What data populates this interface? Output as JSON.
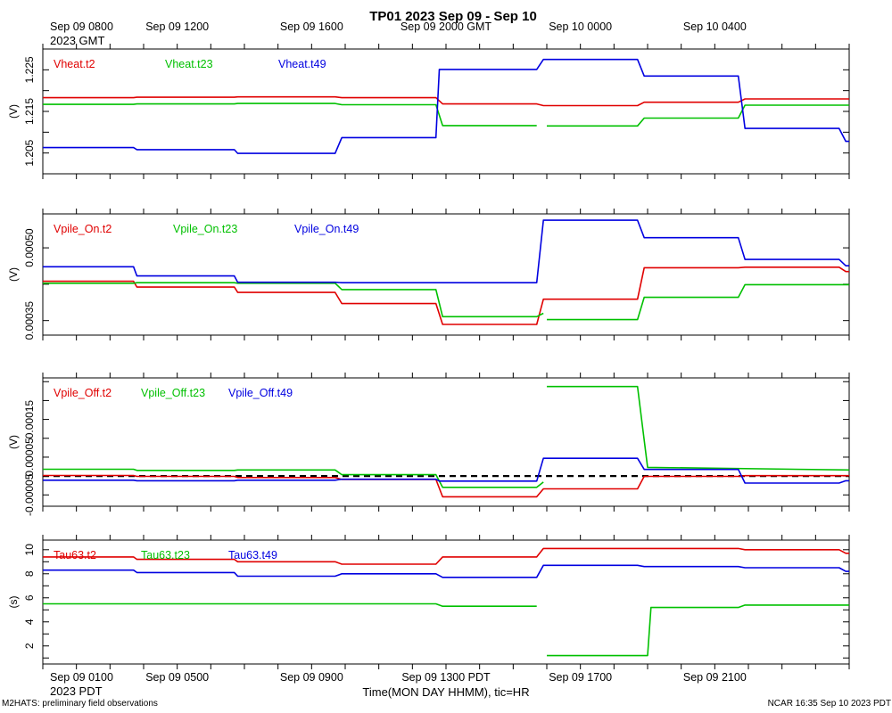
{
  "title": "TP01 2023 Sep 09 - Sep 10",
  "footer_left": "M2HATS: preliminary field observations",
  "footer_right": "NCAR 16:35 Sep 10 2023 PDT",
  "xlabel": "Time(MON DAY HHMM), tic=HR",
  "colors": {
    "t2": "#e00000",
    "t23": "#00c000",
    "t49": "#0000e0",
    "axis": "#000000"
  },
  "top_axis": {
    "ticks": [
      {
        "h": 0.3,
        "label": "Sep 09 0800"
      },
      {
        "h": 4,
        "label": "Sep 09 1200"
      },
      {
        "h": 8,
        "label": "Sep 09 1600"
      },
      {
        "h": 12,
        "label": "Sep 09 2000 GMT"
      },
      {
        "h": 16,
        "label": "Sep 10 0000"
      },
      {
        "h": 20,
        "label": "Sep 10 0400"
      }
    ],
    "sublabel": "2023 GMT"
  },
  "bottom_axis": {
    "ticks": [
      {
        "h": 0.3,
        "label": "Sep 09 0100"
      },
      {
        "h": 4,
        "label": "Sep 09 0500"
      },
      {
        "h": 8,
        "label": "Sep 09 0900"
      },
      {
        "h": 12,
        "label": "Sep 09 1300 PDT"
      },
      {
        "h": 16,
        "label": "Sep 09 1700"
      },
      {
        "h": 20,
        "label": "Sep 09 2100"
      }
    ],
    "sublabel": "2023 PDT"
  },
  "chart_data": [
    {
      "type": "line",
      "name": "vheat",
      "ylabel": "(V)",
      "xlim": [
        0,
        24
      ],
      "ylim": [
        1.2,
        1.23
      ],
      "yticks": [
        1.205,
        1.215,
        1.225
      ],
      "ytick_labels": [
        "1.205",
        "1.215",
        "1.225"
      ],
      "series": [
        {
          "name": "Vheat.t2",
          "color_key": "t2",
          "points": [
            [
              0,
              1.2183
            ],
            [
              2.7,
              1.2183
            ],
            [
              2.8,
              1.2184
            ],
            [
              5.7,
              1.2184
            ],
            [
              5.8,
              1.2185
            ],
            [
              8.7,
              1.2185
            ],
            [
              8.9,
              1.2183
            ],
            [
              11.7,
              1.2183
            ],
            [
              11.9,
              1.2168
            ],
            [
              14.7,
              1.2168
            ],
            [
              14.9,
              1.2164
            ],
            [
              17.7,
              1.2164
            ],
            [
              17.9,
              1.2172
            ],
            [
              20.7,
              1.2172
            ],
            [
              20.9,
              1.218
            ],
            [
              24,
              1.218
            ]
          ]
        },
        {
          "name": "Vheat.t23",
          "color_key": "t23",
          "points": [
            [
              0,
              1.2167
            ],
            [
              2.7,
              1.2167
            ],
            [
              2.8,
              1.2168
            ],
            [
              5.7,
              1.2168
            ],
            [
              5.8,
              1.2169
            ],
            [
              8.7,
              1.2169
            ],
            [
              8.9,
              1.2166
            ],
            [
              11.7,
              1.2166
            ],
            [
              11.9,
              1.2116
            ],
            [
              14.7,
              1.2116
            ],
            null,
            [
              15,
              1.2115
            ],
            [
              17.7,
              1.2115
            ],
            [
              17.9,
              1.2134
            ],
            [
              20.7,
              1.2134
            ],
            [
              20.9,
              1.2165
            ],
            [
              24,
              1.2165
            ]
          ]
        },
        {
          "name": "Vheat.t49",
          "color_key": "t49",
          "points": [
            [
              0,
              1.2063
            ],
            [
              2.7,
              1.2063
            ],
            [
              2.8,
              1.2058
            ],
            [
              5.7,
              1.2058
            ],
            [
              5.8,
              1.2049
            ],
            [
              8.7,
              1.2049
            ],
            [
              8.9,
              1.2087
            ],
            [
              11.7,
              1.2087
            ],
            [
              11.8,
              1.2251
            ],
            [
              14.7,
              1.2251
            ],
            [
              14.9,
              1.2275
            ],
            [
              17.7,
              1.2275
            ],
            [
              17.9,
              1.2235
            ],
            [
              20.7,
              1.2235
            ],
            [
              20.9,
              1.2109
            ],
            [
              23.7,
              1.2109
            ],
            [
              23.9,
              1.2078
            ],
            [
              24,
              1.2078
            ]
          ]
        }
      ]
    },
    {
      "type": "line",
      "name": "vpile_on",
      "ylabel": "(V)",
      "xlim": [
        0,
        24
      ],
      "ylim": [
        0.00032,
        0.00057
      ],
      "yticks": [
        0.00035,
        0.0005
      ],
      "ytick_labels": [
        "0.00035",
        "0.00050"
      ],
      "series": [
        {
          "name": "Vpile_On.t2",
          "color_key": "t2",
          "points": [
            [
              0,
              0.000431
            ],
            [
              2.7,
              0.000431
            ],
            [
              2.8,
              0.000419
            ],
            [
              5.7,
              0.000419
            ],
            [
              5.8,
              0.000408
            ],
            [
              8.7,
              0.000408
            ],
            [
              8.9,
              0.000385
            ],
            [
              11.7,
              0.000385
            ],
            [
              11.9,
              0.000342
            ],
            [
              14.7,
              0.000342
            ],
            [
              14.9,
              0.000394
            ],
            [
              17.7,
              0.000394
            ],
            [
              17.9,
              0.000459
            ],
            [
              20.7,
              0.000459
            ],
            [
              20.9,
              0.00046
            ],
            [
              23.7,
              0.00046
            ],
            [
              23.9,
              0.000451
            ],
            [
              24,
              0.000451
            ]
          ]
        },
        {
          "name": "Vpile_On.t23",
          "color_key": "t23",
          "points": [
            [
              0,
              0.000427
            ],
            [
              2.7,
              0.000427
            ],
            [
              2.8,
              0.000428
            ],
            [
              5.7,
              0.000428
            ],
            [
              5.8,
              0.000427
            ],
            [
              8.7,
              0.000427
            ],
            [
              8.9,
              0.000414
            ],
            [
              11.7,
              0.000414
            ],
            [
              11.9,
              0.000358
            ],
            [
              14.7,
              0.000358
            ],
            [
              14.9,
              0.000365
            ],
            null,
            [
              15,
              0.000352
            ],
            [
              17.7,
              0.000352
            ],
            [
              17.9,
              0.000398
            ],
            [
              20.7,
              0.000398
            ],
            [
              20.9,
              0.000424
            ],
            [
              24,
              0.000424
            ]
          ]
        },
        {
          "name": "Vpile_On.t49",
          "color_key": "t49",
          "points": [
            [
              0,
              0.000461
            ],
            [
              2.7,
              0.000461
            ],
            [
              2.8,
              0.000442
            ],
            [
              5.7,
              0.000442
            ],
            [
              5.8,
              0.000429
            ],
            [
              8.7,
              0.000429
            ],
            [
              8.9,
              0.000428
            ],
            [
              14.7,
              0.000428
            ],
            [
              14.9,
              0.000557
            ],
            [
              17.7,
              0.000557
            ],
            [
              17.9,
              0.000521
            ],
            [
              20.7,
              0.000521
            ],
            [
              20.9,
              0.000476
            ],
            [
              23.7,
              0.000476
            ],
            [
              23.9,
              0.000463
            ],
            [
              24,
              0.000463
            ]
          ]
        }
      ]
    },
    {
      "type": "line",
      "name": "vpile_off",
      "ylabel": "(V)",
      "xlim": [
        0,
        24
      ],
      "ylim": [
        -8e-05,
        0.00026
      ],
      "yticks": [
        -5e-05,
        5e-05,
        0.00015
      ],
      "ytick_labels": [
        "-0.00005",
        "0.00005",
        "0.00015"
      ],
      "reference_line": 0,
      "series": [
        {
          "name": "Vpile_Off.t2",
          "color_key": "t2",
          "points": [
            [
              0,
              1.5e-06
            ],
            [
              2.7,
              1.5e-06
            ],
            [
              2.8,
              -1e-06
            ],
            [
              5.7,
              -1e-06
            ],
            [
              5.8,
              -4e-06
            ],
            [
              8.7,
              -4e-06
            ],
            [
              8.9,
              -9e-06
            ],
            [
              11.7,
              -9e-06
            ],
            [
              11.9,
              -5.5e-05
            ],
            [
              14.7,
              -5.5e-05
            ],
            [
              14.9,
              -3.4e-05
            ],
            [
              17.7,
              -3.4e-05
            ],
            [
              17.9,
              -1e-06
            ],
            [
              20.7,
              -1e-06
            ],
            [
              20.9,
              1e-06
            ],
            [
              24,
              1e-06
            ]
          ]
        },
        {
          "name": "Vpile_Off.t23",
          "color_key": "t23",
          "points": [
            [
              0,
              1.8e-05
            ],
            [
              2.7,
              1.8e-05
            ],
            [
              2.8,
              1.5e-05
            ],
            [
              5.7,
              1.5e-05
            ],
            [
              5.8,
              1.6e-05
            ],
            [
              8.7,
              1.6e-05
            ],
            [
              8.9,
              3.5e-06
            ],
            [
              11.7,
              3.5e-06
            ],
            [
              11.9,
              -3e-05
            ],
            [
              14.7,
              -3e-05
            ],
            [
              14.9,
              -1.6e-05
            ],
            null,
            [
              15,
              0.000237
            ],
            [
              17.7,
              0.000237
            ],
            [
              18,
              2.3e-05
            ],
            [
              24,
              1.6e-05
            ]
          ]
        },
        {
          "name": "Vpile_Off.t49",
          "color_key": "t49",
          "points": [
            [
              0,
              -1.1e-05
            ],
            [
              2.7,
              -1.1e-05
            ],
            [
              2.8,
              -1.25e-05
            ],
            [
              5.7,
              -1.25e-05
            ],
            [
              5.8,
              -1.1e-05
            ],
            [
              8.7,
              -1.1e-05
            ],
            [
              8.9,
              -8.5e-06
            ],
            [
              11.7,
              -8.5e-06
            ],
            [
              11.8,
              -1.35e-05
            ],
            [
              14.7,
              -1.35e-05
            ],
            [
              14.9,
              4.7e-05
            ],
            [
              17.7,
              4.7e-05
            ],
            [
              17.9,
              1.75e-05
            ],
            [
              20.7,
              1.75e-05
            ],
            [
              20.9,
              -1.85e-05
            ],
            [
              23.7,
              -1.85e-05
            ],
            [
              23.9,
              -1.25e-05
            ],
            [
              24,
              -1.25e-05
            ]
          ]
        }
      ]
    },
    {
      "type": "line",
      "name": "tau63",
      "ylabel": "(s)",
      "xlim": [
        0,
        24
      ],
      "ylim": [
        0.5,
        10.8
      ],
      "yticks": [
        2,
        4,
        6,
        8,
        10
      ],
      "ytick_labels": [
        "2",
        "4",
        "6",
        "8",
        "10"
      ],
      "series": [
        {
          "name": "Tau63.t2",
          "color_key": "t2",
          "points": [
            [
              0,
              9.4
            ],
            [
              2.7,
              9.4
            ],
            [
              2.8,
              9.2
            ],
            [
              5.7,
              9.2
            ],
            [
              5.8,
              9.0
            ],
            [
              8.7,
              9.0
            ],
            [
              8.9,
              8.8
            ],
            [
              11.7,
              8.8
            ],
            [
              11.9,
              9.4
            ],
            [
              14.7,
              9.4
            ],
            [
              14.9,
              10.1
            ],
            [
              17.7,
              10.1
            ],
            [
              17.9,
              10.1
            ],
            [
              20.7,
              10.1
            ],
            [
              20.9,
              10.0
            ],
            [
              23.7,
              10.0
            ],
            [
              23.9,
              9.7
            ],
            [
              24,
              9.7
            ]
          ]
        },
        {
          "name": "Tau63.t23",
          "color_key": "t23",
          "points": [
            [
              0,
              5.5
            ],
            [
              11.7,
              5.5
            ],
            [
              11.9,
              5.3
            ],
            [
              14.7,
              5.3
            ],
            null,
            [
              15,
              1.2
            ],
            [
              18,
              1.2
            ],
            [
              18.1,
              5.2
            ],
            [
              20.7,
              5.2
            ],
            [
              20.9,
              5.4
            ],
            [
              24,
              5.4
            ]
          ]
        },
        {
          "name": "Tau63.t49",
          "color_key": "t49",
          "points": [
            [
              0,
              8.3
            ],
            [
              2.7,
              8.3
            ],
            [
              2.8,
              8.1
            ],
            [
              5.7,
              8.1
            ],
            [
              5.8,
              7.8
            ],
            [
              8.7,
              7.8
            ],
            [
              8.9,
              8.0
            ],
            [
              11.7,
              8.0
            ],
            [
              11.9,
              7.7
            ],
            [
              14.7,
              7.7
            ],
            [
              14.9,
              8.7
            ],
            [
              17.7,
              8.7
            ],
            [
              17.9,
              8.6
            ],
            [
              20.7,
              8.6
            ],
            [
              20.9,
              8.5
            ],
            [
              23.7,
              8.5
            ],
            [
              23.9,
              8.2
            ],
            [
              24,
              8.2
            ]
          ]
        }
      ]
    }
  ]
}
